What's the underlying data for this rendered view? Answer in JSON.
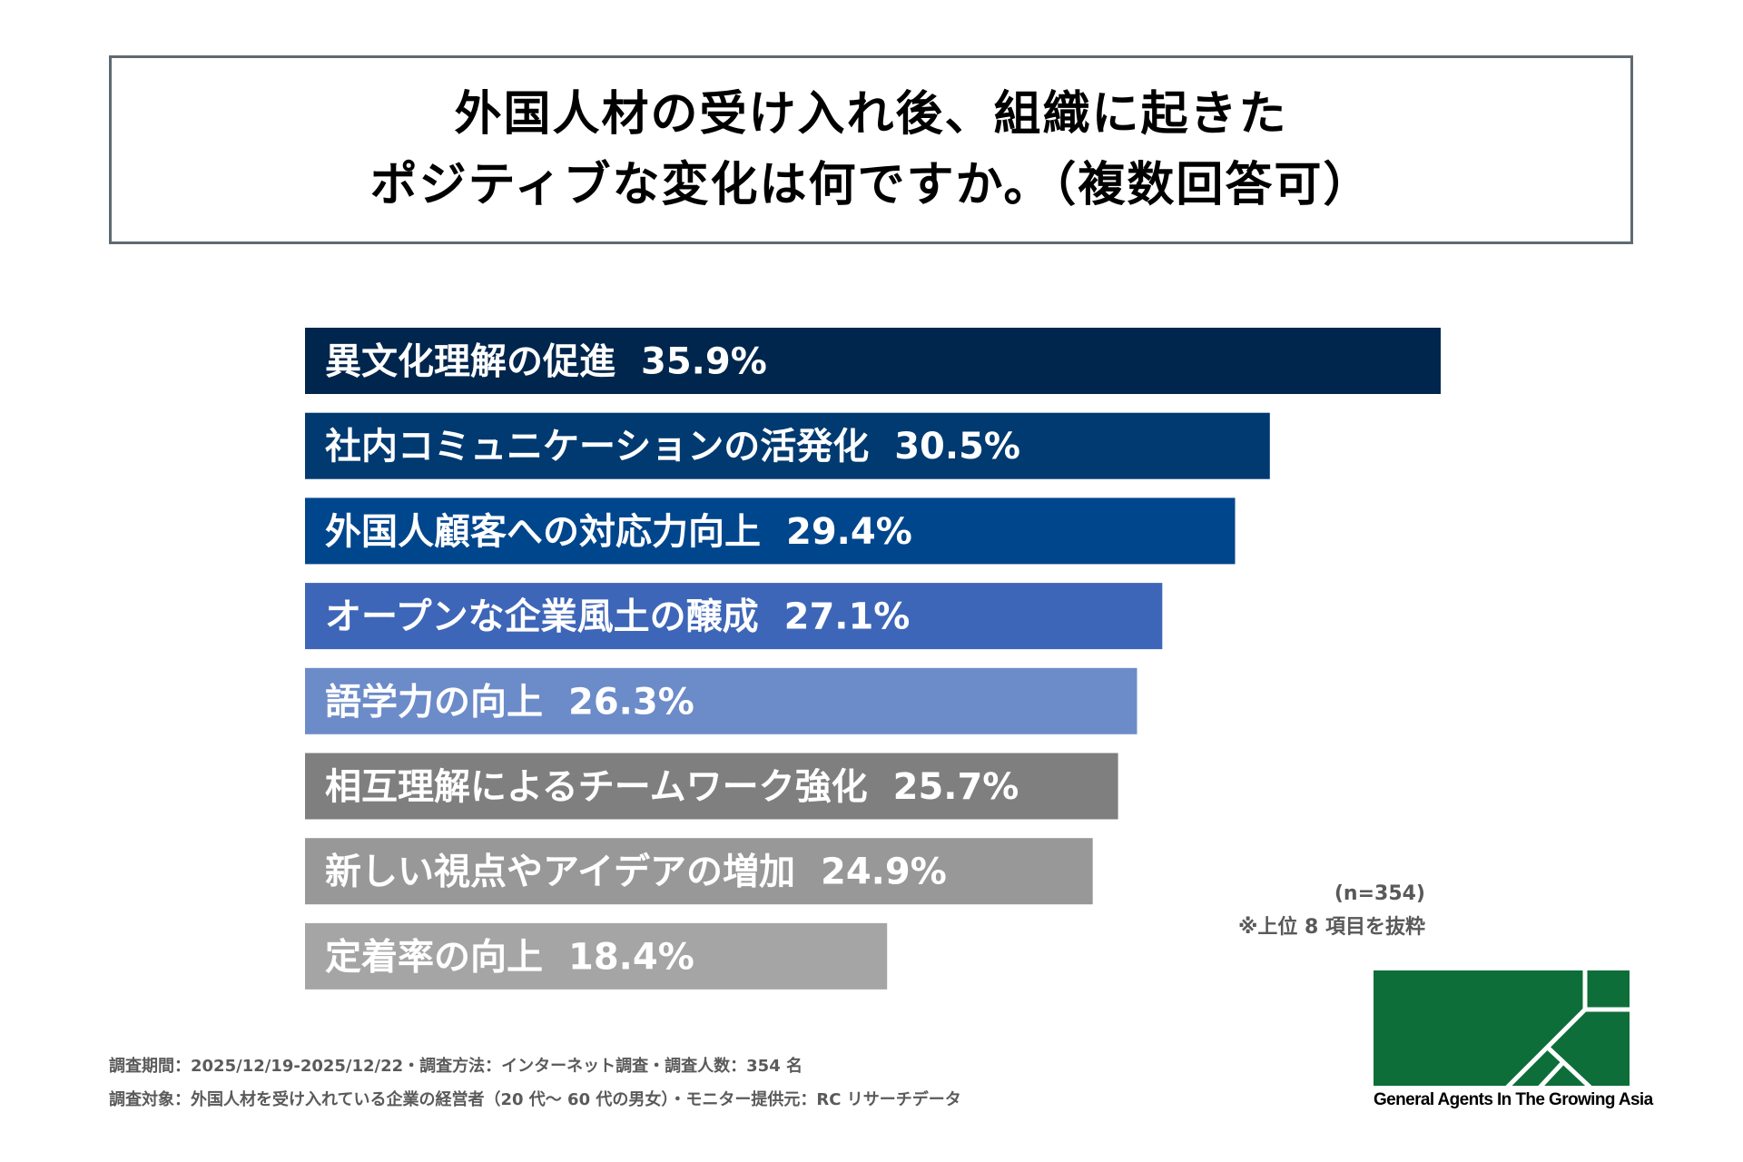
{
  "title": {
    "line1": "外国人材の受け入れ後、組織に起きた",
    "line2": "ポジティブな変化は何ですか。（複数回答可）"
  },
  "chart_data": {
    "type": "bar",
    "orientation": "horizontal",
    "title": "外国人材の受け入れ後、組織に起きたポジティブな変化は何ですか。（複数回答可）",
    "unit": "%",
    "categories": [
      "異文化理解の促進",
      "社内コミュニケーションの活発化",
      "外国人顧客への対応力向上",
      "オープンな企業風土の醸成",
      "語学力の向上",
      "相互理解によるチームワーク強化",
      "新しい視点やアイデアの増加",
      "定着率の向上"
    ],
    "values": [
      35.9,
      30.5,
      29.4,
      27.1,
      26.3,
      25.7,
      24.9,
      18.4
    ],
    "value_labels": [
      "35.9%",
      "30.5%",
      "29.4%",
      "27.1%",
      "26.3%",
      "25.7%",
      "24.9%",
      "18.4%"
    ],
    "colors": [
      "#00264d",
      "#003a70",
      "#00468d",
      "#3e66b8",
      "#6c8bc9",
      "#7f7f7f",
      "#989898",
      "#a5a5a5"
    ],
    "xlim": [
      0,
      35.9
    ],
    "grid": false,
    "legend": "none"
  },
  "notes": {
    "sample_size": "(n=354)",
    "excerpt": "※上位 8 項目を抜粋"
  },
  "footer": {
    "line1": "調査期間：2025/12/19-2025/12/22・調査方法：インターネット調査・調査人数：354 名",
    "line2": "調査対象：外国人材を受け入れている企業の経営者（20 代～ 60 代の男女）・モニター提供元：RC リサーチデータ"
  },
  "logo": {
    "text": "General Agents In The Growing Asia",
    "color": "#0e6e3a"
  }
}
